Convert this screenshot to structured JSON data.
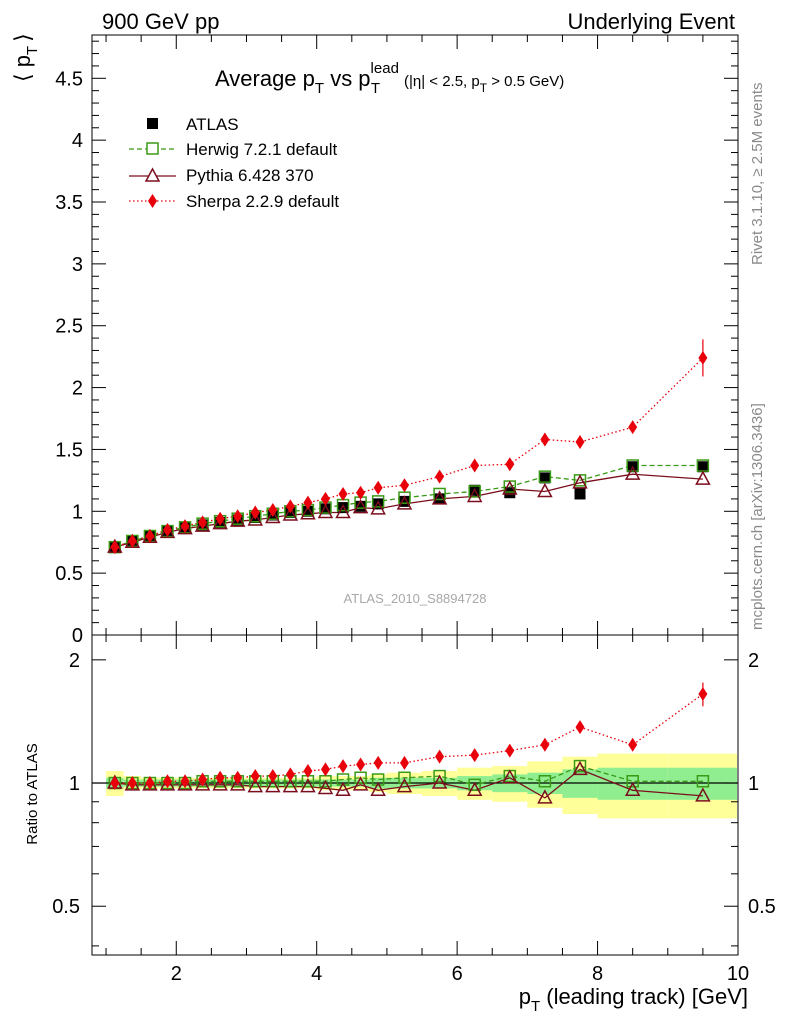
{
  "header": {
    "left": "900 GeV pp",
    "right": "Underlying Event"
  },
  "side_labels": {
    "rivet": "Rivet 3.1.10, ≥ 2.5M events",
    "mcplots": "mcplots.cern.ch [arXiv:1306.3436]"
  },
  "watermark": "ATLAS_2010_S8894728",
  "chart_data": [
    {
      "panel": "main",
      "type": "scatter",
      "title": {
        "prefix": "Average p",
        "sub1": "T",
        "mid": " vs p",
        "sup2": "lead",
        "sub2": "T",
        "cut_open": " (|η| < 2.5, p",
        "cut_sub": "T",
        "cut_close": " > 0.5 GeV)"
      },
      "ylabel": {
        "open": "⟨ p",
        "sub": "T",
        "close": "⟩"
      },
      "xlim": [
        0.8,
        10.0
      ],
      "ylim": [
        0,
        4.85
      ],
      "y_ticks": [
        0,
        0.5,
        1,
        1.5,
        2,
        2.5,
        3,
        3.5,
        4,
        4.5
      ],
      "y_tick_labels": [
        "0",
        "0.5",
        "1",
        "1.5",
        "2",
        "2.5",
        "3",
        "3.5",
        "4",
        "4.5"
      ],
      "x": [
        1.125,
        1.375,
        1.625,
        1.875,
        2.125,
        2.375,
        2.625,
        2.875,
        3.125,
        3.375,
        3.625,
        3.875,
        4.125,
        4.375,
        4.625,
        4.875,
        5.25,
        5.75,
        6.25,
        6.75,
        7.25,
        7.75,
        8.5,
        9.5
      ],
      "series": [
        {
          "name": "ATLAS",
          "style": "data",
          "color": "#000000",
          "values": [
            0.71,
            0.76,
            0.8,
            0.84,
            0.87,
            0.89,
            0.91,
            0.93,
            0.95,
            0.97,
            0.99,
            1.0,
            1.02,
            1.03,
            1.04,
            1.06,
            1.08,
            1.1,
            1.17,
            1.15,
            1.27,
            1.14,
            1.36,
            1.36
          ]
        },
        {
          "name": "Herwig 7.2.1 default",
          "style": "open-square-dashed",
          "color": "#3a9a15",
          "values": [
            0.71,
            0.76,
            0.8,
            0.84,
            0.87,
            0.9,
            0.92,
            0.94,
            0.96,
            0.98,
            1.0,
            1.01,
            1.03,
            1.05,
            1.07,
            1.08,
            1.11,
            1.14,
            1.16,
            1.2,
            1.28,
            1.25,
            1.37,
            1.37
          ]
        },
        {
          "name": "Pythia 6.428 370",
          "style": "open-triangle-solid",
          "color": "#7b0e1e",
          "values": [
            0.71,
            0.75,
            0.79,
            0.83,
            0.86,
            0.88,
            0.9,
            0.92,
            0.93,
            0.95,
            0.97,
            0.98,
            0.99,
            0.99,
            1.03,
            1.02,
            1.06,
            1.1,
            1.12,
            1.18,
            1.16,
            1.23,
            1.3,
            1.26
          ]
        },
        {
          "name": "Sherpa 2.2.9 default",
          "style": "diamond-dotted",
          "color": "#e8000b",
          "values": [
            0.71,
            0.76,
            0.8,
            0.85,
            0.88,
            0.91,
            0.94,
            0.96,
            0.99,
            1.01,
            1.04,
            1.07,
            1.1,
            1.14,
            1.15,
            1.19,
            1.21,
            1.28,
            1.37,
            1.38,
            1.58,
            1.56,
            1.68,
            2.24
          ],
          "errors": [
            0.01,
            0.01,
            0.01,
            0.01,
            0.01,
            0.01,
            0.01,
            0.01,
            0.01,
            0.01,
            0.01,
            0.01,
            0.01,
            0.01,
            0.02,
            0.02,
            0.02,
            0.03,
            0.03,
            0.03,
            0.05,
            0.05,
            0.05,
            0.15
          ]
        }
      ]
    },
    {
      "panel": "ratio",
      "type": "scatter",
      "ylabel": "Ratio to ATLAS",
      "ylim": [
        0.38,
        2.3
      ],
      "y_scale": "log",
      "y_ticks": [
        0.5,
        1,
        2
      ],
      "y_tick_labels": [
        "0.5",
        "1",
        "2"
      ],
      "x_ticks": [
        2,
        4,
        6,
        8,
        10
      ],
      "x_tick_labels": [
        "2",
        "4",
        "6",
        "8",
        "10"
      ],
      "xlabel": {
        "p": "p",
        "sub": "T",
        "rest": " (leading track) [GeV]"
      },
      "x_bin_edges": [
        1.0,
        1.25,
        1.5,
        1.75,
        2.0,
        2.25,
        2.5,
        2.75,
        3.0,
        3.25,
        3.5,
        3.75,
        4.0,
        4.25,
        4.5,
        4.75,
        5.0,
        5.5,
        6.0,
        6.5,
        7.0,
        7.5,
        8.0,
        9.0,
        10.0
      ],
      "band_inner": [
        0.03,
        0.02,
        0.02,
        0.02,
        0.02,
        0.02,
        0.02,
        0.02,
        0.02,
        0.02,
        0.02,
        0.02,
        0.02,
        0.02,
        0.02,
        0.03,
        0.03,
        0.03,
        0.04,
        0.05,
        0.06,
        0.08,
        0.09,
        0.09
      ],
      "band_outer": [
        0.07,
        0.04,
        0.03,
        0.03,
        0.03,
        0.03,
        0.03,
        0.03,
        0.03,
        0.03,
        0.03,
        0.03,
        0.04,
        0.04,
        0.04,
        0.05,
        0.06,
        0.07,
        0.09,
        0.1,
        0.13,
        0.16,
        0.18,
        0.18
      ],
      "band_colors": {
        "inner": "#90ee90",
        "outer": "#ffff99"
      },
      "series": [
        {
          "name": "Herwig 7.2.1 default",
          "values": [
            1.0,
            1.0,
            1.0,
            1.0,
            1.0,
            1.01,
            1.01,
            1.01,
            1.01,
            1.01,
            1.01,
            1.01,
            1.01,
            1.02,
            1.03,
            1.02,
            1.03,
            1.04,
            0.99,
            1.04,
            1.01,
            1.1,
            1.01,
            1.01
          ]
        },
        {
          "name": "Pythia 6.428 370",
          "values": [
            1.0,
            0.99,
            0.99,
            0.99,
            0.99,
            0.99,
            0.99,
            0.99,
            0.98,
            0.98,
            0.98,
            0.98,
            0.97,
            0.96,
            0.99,
            0.96,
            0.98,
            1.0,
            0.96,
            1.03,
            0.92,
            1.08,
            0.96,
            0.93
          ]
        },
        {
          "name": "Sherpa 2.2.9 default",
          "values": [
            1.0,
            1.0,
            1.0,
            1.01,
            1.01,
            1.02,
            1.03,
            1.03,
            1.04,
            1.04,
            1.05,
            1.07,
            1.08,
            1.1,
            1.11,
            1.12,
            1.12,
            1.16,
            1.17,
            1.2,
            1.24,
            1.37,
            1.24,
            1.65
          ],
          "errors": [
            0.01,
            0.01,
            0.01,
            0.01,
            0.01,
            0.01,
            0.01,
            0.01,
            0.01,
            0.01,
            0.01,
            0.01,
            0.01,
            0.01,
            0.02,
            0.02,
            0.02,
            0.02,
            0.02,
            0.03,
            0.04,
            0.04,
            0.04,
            0.11
          ]
        }
      ]
    }
  ]
}
